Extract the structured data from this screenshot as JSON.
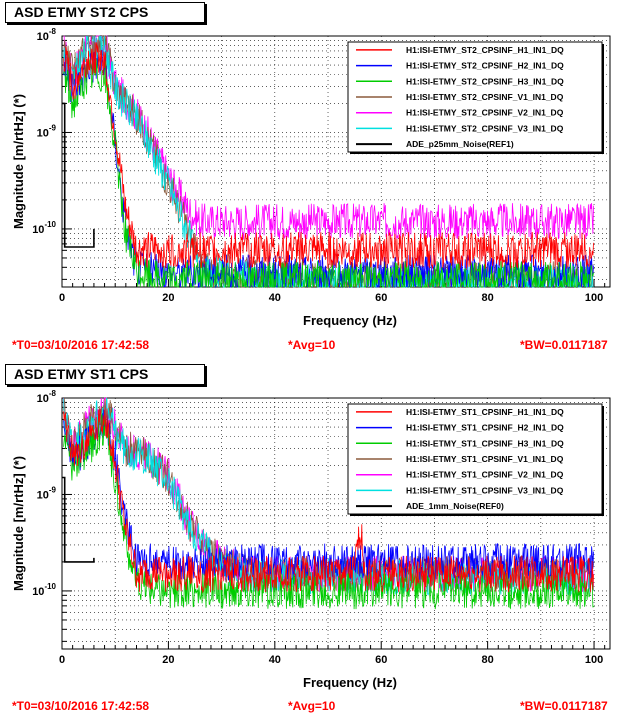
{
  "chart_data": [
    {
      "type": "line",
      "title": "ASD ETMY ST2 CPS",
      "xlabel": "Frequency (Hz)",
      "ylabel": "Magnitude [m/rtHz] (*)",
      "xlim": [
        0,
        103
      ],
      "ylim": [
        2.5e-11,
        1e-08
      ],
      "yscale": "log",
      "grid": true,
      "legend_position": "top-right",
      "x_ticks": [
        "0",
        "20",
        "40",
        "60",
        "80",
        "100"
      ],
      "y_ticks": [
        "10^-8",
        "10^-9",
        "10^-10"
      ],
      "footer": {
        "t0": "*T0=03/10/2016 17:42:58",
        "avg": "*Avg=10",
        "bw": "*BW=0.0117187"
      },
      "series": [
        {
          "name": "H1:ISI-ETMY_ST2_CPSINF_H1_IN1_DQ",
          "color": "#ff0000",
          "x": [
            0,
            2,
            5,
            8,
            10,
            12,
            14,
            20,
            40,
            60,
            80,
            100
          ],
          "y": [
            7e-09,
            3e-09,
            6e-09,
            6e-09,
            1e-09,
            1.5e-10,
            6e-11,
            6e-11,
            6e-11,
            6e-11,
            6e-11,
            6e-11
          ]
        },
        {
          "name": "H1:ISI-ETMY_ST2_CPSINF_H2_IN1_DQ",
          "color": "#0000ff",
          "x": [
            0,
            2,
            5,
            8,
            10,
            12,
            14,
            20,
            40,
            60,
            80,
            100
          ],
          "y": [
            6e-09,
            2.5e-09,
            5e-09,
            5e-09,
            8e-10,
            1e-10,
            4e-11,
            3.5e-11,
            3.5e-11,
            3.5e-11,
            3.5e-11,
            3.5e-11
          ]
        },
        {
          "name": "H1:ISI-ETMY_ST2_CPSINF_H3_IN1_DQ",
          "color": "#00cc00",
          "x": [
            0,
            2,
            5,
            8,
            10,
            12,
            14,
            20,
            40,
            60,
            80,
            100
          ],
          "y": [
            5e-09,
            2e-09,
            4e-09,
            4e-09,
            7e-10,
            9e-11,
            3.5e-11,
            3e-11,
            3e-11,
            3e-11,
            3e-11,
            3e-11
          ]
        },
        {
          "name": "H1:ISI-ETMY_ST2_CPSINF_V1_IN1_DQ",
          "color": "#8b5a3c",
          "x": [
            0,
            2,
            5,
            8,
            10,
            15,
            20,
            24,
            26,
            40,
            60,
            80,
            100
          ],
          "y": [
            8e-09,
            4e-09,
            9e-09,
            9e-09,
            3e-09,
            1.2e-09,
            3e-10,
            9e-11,
            4e-11,
            3e-11,
            3e-11,
            3e-11,
            3e-11
          ]
        },
        {
          "name": "H1:ISI-ETMY_ST2_CPSINF_V2_IN1_DQ",
          "color": "#ff00ff",
          "x": [
            0,
            2,
            5,
            8,
            10,
            15,
            20,
            24,
            26,
            40,
            60,
            80,
            100
          ],
          "y": [
            8e-09,
            4e-09,
            9e-09,
            9e-09,
            3e-09,
            1.3e-09,
            3.5e-10,
            1.5e-10,
            1.2e-10,
            1.2e-10,
            1.2e-10,
            1.2e-10,
            1.2e-10
          ]
        },
        {
          "name": "H1:ISI-ETMY_ST2_CPSINF_V3_IN1_DQ",
          "color": "#00e0e0",
          "x": [
            0,
            2,
            5,
            8,
            10,
            15,
            20,
            24,
            26,
            40,
            60,
            80,
            100
          ],
          "y": [
            7e-09,
            3.5e-09,
            8e-09,
            8e-09,
            2.8e-09,
            1.1e-09,
            3e-10,
            8e-11,
            3.5e-11,
            2.8e-11,
            2.8e-11,
            2.8e-11,
            2.8e-11
          ]
        },
        {
          "name": "ADE_p25mm_Noise(REF1)",
          "color": "#000000",
          "x": [
            0,
            0.5,
            0.5,
            6,
            6
          ],
          "y": [
            2e-09,
            2e-09,
            6.5e-11,
            6.5e-11,
            1e-10
          ]
        }
      ]
    },
    {
      "type": "line",
      "title": "ASD ETMY ST1 CPS",
      "xlabel": "Frequency (Hz)",
      "ylabel": "Magnitude [m/rtHz] (*)",
      "xlim": [
        0,
        103
      ],
      "ylim": [
        2.5e-11,
        1e-08
      ],
      "yscale": "log",
      "grid": true,
      "legend_position": "top-right",
      "x_ticks": [
        "0",
        "20",
        "40",
        "60",
        "80",
        "100"
      ],
      "y_ticks": [
        "10^-8",
        "10^-9",
        "10^-10"
      ],
      "footer": {
        "t0": "*T0=03/10/2016 17:42:58",
        "avg": "*Avg=10",
        "bw": "*BW=0.0117187"
      },
      "series": [
        {
          "name": "H1:ISI-ETMY_ST1_CPSINF_H1_IN1_DQ",
          "color": "#ff0000",
          "x": [
            0,
            2,
            5,
            8,
            10,
            12,
            14,
            20,
            40,
            55,
            56,
            57,
            60,
            80,
            100
          ],
          "y": [
            7e-09,
            2.5e-09,
            4e-09,
            7e-09,
            2e-09,
            4e-10,
            1.5e-10,
            1.5e-10,
            1.5e-10,
            1.5e-10,
            5e-10,
            1.5e-10,
            1.5e-10,
            1.5e-10,
            1.5e-10
          ]
        },
        {
          "name": "H1:ISI-ETMY_ST1_CPSINF_H2_IN1_DQ",
          "color": "#0000ff",
          "x": [
            0,
            2,
            5,
            8,
            10,
            12,
            14,
            20,
            40,
            60,
            80,
            100
          ],
          "y": [
            6e-09,
            2.2e-09,
            3.5e-09,
            6e-09,
            2.5e-09,
            5e-10,
            2e-10,
            2e-10,
            2e-10,
            2e-10,
            2e-10,
            2e-10
          ]
        },
        {
          "name": "H1:ISI-ETMY_ST1_CPSINF_H3_IN1_DQ",
          "color": "#00cc00",
          "x": [
            0,
            2,
            5,
            8,
            10,
            12,
            14,
            20,
            40,
            60,
            80,
            100
          ],
          "y": [
            5e-09,
            2e-09,
            3e-09,
            5e-09,
            1.5e-09,
            3e-10,
            1.2e-10,
            1e-10,
            1e-10,
            1e-10,
            1e-10,
            1e-10
          ]
        },
        {
          "name": "H1:ISI-ETMY_ST1_CPSINF_V1_IN1_DQ",
          "color": "#8b5a3c",
          "x": [
            0,
            2,
            5,
            8,
            12,
            16,
            20,
            24,
            28,
            30,
            35,
            60,
            80,
            100
          ],
          "y": [
            9e-09,
            3e-09,
            6e-09,
            8e-09,
            3e-09,
            2.5e-09,
            1.5e-09,
            5e-10,
            2.5e-10,
            2e-10,
            1.5e-10,
            1.5e-10,
            1.5e-10,
            1.5e-10
          ]
        },
        {
          "name": "H1:ISI-ETMY_ST1_CPSINF_V2_IN1_DQ",
          "color": "#ff00ff",
          "x": [
            0,
            2,
            5,
            8,
            12,
            16,
            20,
            24,
            28,
            30,
            35,
            60,
            80,
            100
          ],
          "y": [
            9e-09,
            3.2e-09,
            6e-09,
            8e-09,
            3e-09,
            2.5e-09,
            1.6e-09,
            5e-10,
            2.5e-10,
            2e-10,
            1.5e-10,
            1.5e-10,
            1.5e-10,
            1.5e-10
          ]
        },
        {
          "name": "H1:ISI-ETMY_ST1_CPSINF_V3_IN1_DQ",
          "color": "#00e0e0",
          "x": [
            0,
            2,
            5,
            8,
            12,
            16,
            20,
            24,
            28,
            30,
            35,
            60,
            80,
            100
          ],
          "y": [
            8e-09,
            3e-09,
            5.5e-09,
            7.5e-09,
            2.8e-09,
            2.4e-09,
            1.4e-09,
            4.5e-10,
            2.4e-10,
            1.9e-10,
            1.4e-10,
            1.4e-10,
            1.4e-10,
            1.4e-10
          ]
        },
        {
          "name": "ADE_1mm_Noise(REF0)",
          "color": "#000000",
          "x": [
            0,
            0.5,
            0.5,
            6,
            6
          ],
          "y": [
            1.5e-09,
            1.5e-09,
            2e-10,
            2e-10,
            2.2e-10
          ]
        }
      ]
    }
  ]
}
